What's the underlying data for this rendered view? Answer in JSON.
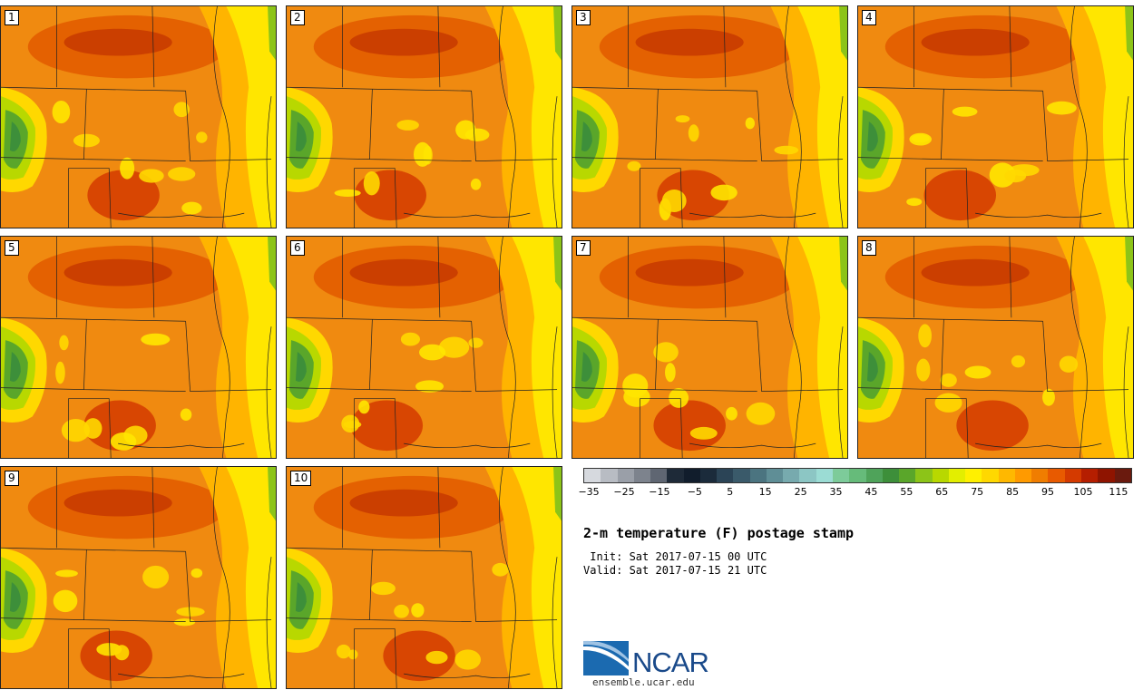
{
  "stamps": [
    {
      "label": "1"
    },
    {
      "label": "2"
    },
    {
      "label": "3"
    },
    {
      "label": "4"
    },
    {
      "label": "5"
    },
    {
      "label": "6"
    },
    {
      "label": "7"
    },
    {
      "label": "8"
    },
    {
      "label": "9"
    },
    {
      "label": "10"
    }
  ],
  "colorbar": {
    "colors": [
      "#d6d9de",
      "#b8bcc3",
      "#9a9fa8",
      "#7d838d",
      "#5f6672",
      "#1e2a38",
      "#111d2c",
      "#1b2b3b",
      "#2b4456",
      "#3a5a6a",
      "#4b7480",
      "#5f8e96",
      "#77aaae",
      "#8cc6c4",
      "#9bdcd4",
      "#7dcb9a",
      "#66bb7a",
      "#4fa35a",
      "#3d8f3a",
      "#5aa62a",
      "#8cc418",
      "#b8d800",
      "#e3ee00",
      "#fff000",
      "#ffd800",
      "#ffb800",
      "#ff9a00",
      "#f07d00",
      "#e85a00",
      "#d43a00",
      "#b51e00",
      "#8f1400",
      "#6a1a0e"
    ],
    "ticks": [
      "−35",
      "−25",
      "−15",
      "−5",
      "5",
      "15",
      "25",
      "35",
      "45",
      "55",
      "65",
      "75",
      "85",
      "95",
      "105",
      "115"
    ]
  },
  "info": {
    "title": "2-m temperature (F) postage stamp",
    "init": " Init: Sat 2017-07-15 00 UTC",
    "valid": "Valid: Sat 2017-07-15 21 UTC"
  },
  "logo": {
    "text": "NCAR",
    "site": "ensemble.ucar.edu",
    "brand_color": "#1a4a8a",
    "swoosh_color": "#1b6ab0"
  }
}
